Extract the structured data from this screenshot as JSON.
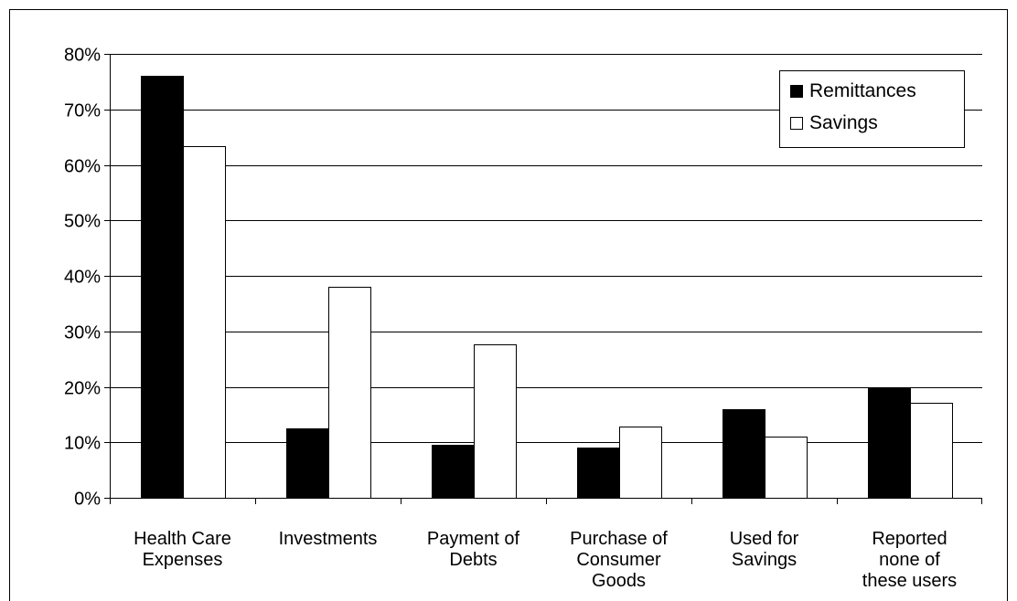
{
  "chart_data": {
    "type": "bar",
    "categories": [
      [
        "Health Care",
        "Expenses"
      ],
      [
        "Investments"
      ],
      [
        "Payment of",
        "Debts"
      ],
      [
        "Purchase of",
        "Consumer",
        "Goods"
      ],
      [
        "Used for",
        "Savings"
      ],
      [
        "Reported",
        "none of",
        "these users"
      ]
    ],
    "series": [
      {
        "name": "Remittances",
        "color": "#000000",
        "values": [
          76,
          12.5,
          9.5,
          9,
          16,
          20
        ]
      },
      {
        "name": "Savings",
        "color": "#ffffff",
        "values": [
          63.3,
          38,
          27.7,
          12.8,
          11,
          17.2
        ]
      }
    ],
    "ylim": [
      0,
      80
    ],
    "yticks": [
      0,
      10,
      20,
      30,
      40,
      50,
      60,
      70,
      80
    ],
    "ytick_labels": [
      "0%",
      "10%",
      "20%",
      "30%",
      "40%",
      "50%",
      "60%",
      "70%",
      "80%"
    ],
    "grid": true,
    "legend": "top-right",
    "title": "",
    "xlabel": "",
    "ylabel": ""
  }
}
